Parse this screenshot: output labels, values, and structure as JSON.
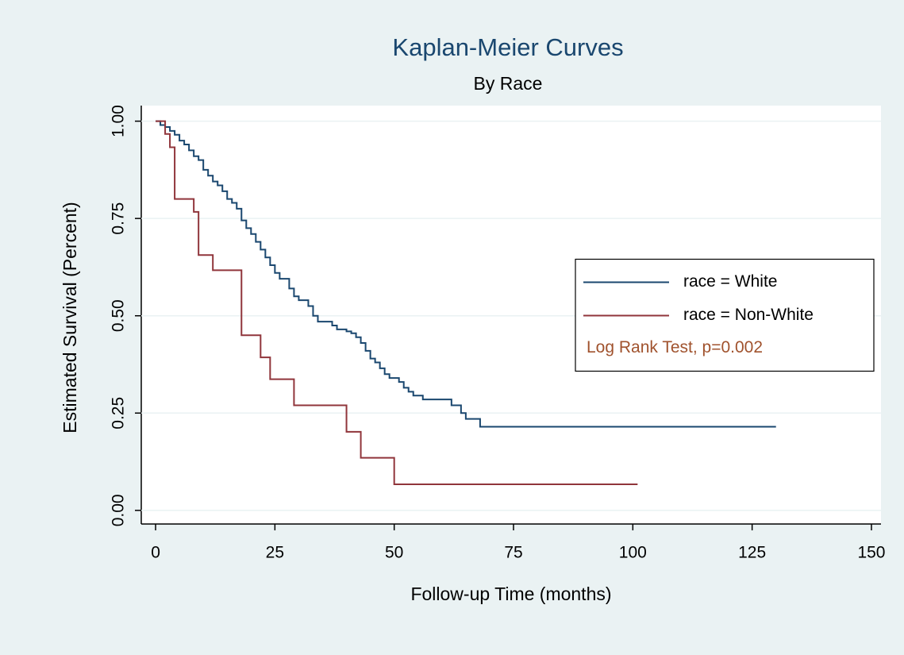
{
  "chart_data": {
    "type": "step",
    "title": "Kaplan-Meier Curves",
    "subtitle": "By Race",
    "x_label": "Follow-up Time (months)",
    "y_label": "Estimated Survival (Percent)",
    "xlim": [
      -3,
      152
    ],
    "ylim": [
      -0.035,
      1.04
    ],
    "xticks": [
      0,
      25,
      50,
      75,
      100,
      125,
      150
    ],
    "yticks": [
      {
        "value": 0,
        "label": "0.00"
      },
      {
        "value": 0.25,
        "label": "0.25"
      },
      {
        "value": 0.5,
        "label": "0.50"
      },
      {
        "value": 0.75,
        "label": "0.75"
      },
      {
        "value": 1,
        "label": "1.00"
      }
    ],
    "grid": true,
    "legend_position": "right",
    "annotation": "Log Rank Test, p=0.002",
    "annotation_color": "#a0522d",
    "series": [
      {
        "name": "race = White",
        "color": "#1a476f",
        "x": [
          0,
          1,
          2,
          3,
          4,
          5,
          6,
          7,
          8,
          9,
          10,
          11,
          12,
          13,
          14,
          15,
          16,
          17,
          18,
          19,
          20,
          21,
          22,
          23,
          24,
          25,
          26,
          28,
          29,
          30,
          32,
          33,
          34,
          37,
          38,
          40,
          41,
          42,
          43,
          44,
          45,
          46,
          47,
          48,
          49,
          51,
          52,
          53,
          54,
          56,
          62,
          64,
          65,
          68,
          130
        ],
        "values": [
          1.0,
          0.99,
          0.985,
          0.975,
          0.965,
          0.95,
          0.94,
          0.925,
          0.91,
          0.9,
          0.875,
          0.86,
          0.845,
          0.835,
          0.82,
          0.8,
          0.79,
          0.775,
          0.745,
          0.725,
          0.71,
          0.69,
          0.67,
          0.65,
          0.63,
          0.61,
          0.595,
          0.57,
          0.55,
          0.54,
          0.525,
          0.5,
          0.485,
          0.475,
          0.465,
          0.46,
          0.455,
          0.445,
          0.43,
          0.41,
          0.39,
          0.38,
          0.365,
          0.35,
          0.34,
          0.33,
          0.315,
          0.305,
          0.295,
          0.285,
          0.27,
          0.25,
          0.235,
          0.215,
          0.215
        ]
      },
      {
        "name": "race = Non-White",
        "color": "#90353b",
        "x": [
          0,
          2,
          3,
          4,
          8,
          9,
          12,
          18,
          22,
          24,
          29,
          40,
          43,
          50,
          101
        ],
        "values": [
          1.0,
          0.967,
          0.933,
          0.8,
          0.767,
          0.656,
          0.617,
          0.45,
          0.393,
          0.337,
          0.27,
          0.202,
          0.135,
          0.067,
          0.067
        ]
      }
    ]
  }
}
